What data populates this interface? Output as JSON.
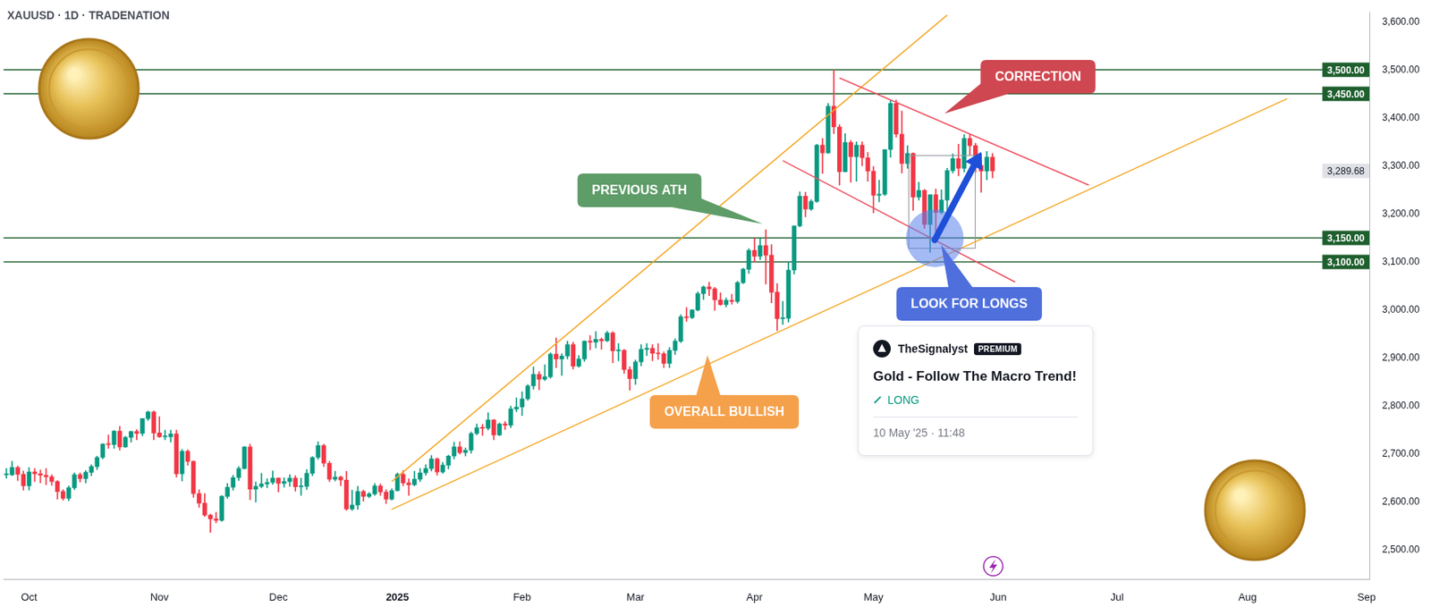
{
  "chart_data": {
    "type": "candlestick",
    "title": "XAUUSD · 1D · TRADENATION",
    "categories": [
      null,
      null,
      null,
      null,
      "Oct",
      null,
      null,
      null,
      null,
      null,
      null,
      null,
      null,
      null,
      null,
      null,
      null,
      null,
      null,
      null,
      null,
      null,
      null,
      null,
      null,
      null,
      null,
      "Nov",
      null,
      null,
      null,
      null,
      null,
      null,
      null,
      null,
      null,
      null,
      null,
      null,
      null,
      null,
      null,
      null,
      null,
      null,
      null,
      null,
      "Dec",
      null,
      null,
      null,
      null,
      null,
      null,
      null,
      null,
      null,
      null,
      null,
      null,
      null,
      null,
      null,
      null,
      null,
      null,
      null,
      null,
      "2025",
      null,
      null,
      null,
      null,
      null,
      null,
      null,
      null,
      null,
      null,
      null,
      null,
      null,
      null,
      null,
      null,
      null,
      null,
      null,
      null,
      null,
      "Feb",
      null,
      null,
      null,
      null,
      null,
      null,
      null,
      null,
      null,
      null,
      null,
      null,
      null,
      null,
      null,
      null,
      null,
      null,
      null,
      "Mar",
      null,
      null,
      null,
      null,
      null,
      null,
      null,
      null,
      null,
      null,
      null,
      null,
      null,
      null,
      null,
      null,
      null,
      null,
      null,
      null,
      "Apr",
      null,
      null,
      null,
      null,
      null,
      null,
      null,
      null,
      null,
      null,
      null,
      null,
      null,
      null,
      null,
      null,
      null,
      null,
      null,
      null,
      "May",
      null,
      null,
      null,
      null,
      null,
      null,
      null,
      null,
      null,
      null,
      null,
      null,
      null,
      null,
      null,
      null,
      null,
      null,
      null,
      null,
      null,
      "Jun",
      null,
      null,
      null,
      null,
      null,
      null,
      null,
      null,
      null,
      null,
      null,
      null,
      null,
      null,
      null,
      null,
      null,
      null,
      null,
      null,
      "Jul",
      null,
      null,
      null,
      null,
      null,
      null,
      null,
      null,
      null,
      null,
      null,
      null,
      null,
      null,
      null,
      null,
      null,
      null,
      null,
      null,
      null,
      null,
      "Aug",
      null,
      null,
      null,
      null,
      null,
      null,
      null,
      null,
      null,
      null,
      null,
      null,
      null,
      null,
      null,
      null,
      null,
      null,
      null,
      null,
      "Sep"
    ],
    "values": [
      [
        2657,
        2670,
        2650,
        2657
      ],
      [
        2657,
        2685,
        2655,
        2672
      ],
      [
        2672,
        2675,
        2645,
        2658
      ],
      [
        2658,
        2665,
        2625,
        2634
      ],
      [
        2634,
        2672,
        2625,
        2663
      ],
      [
        2663,
        2670,
        2643,
        2659
      ],
      [
        2659,
        2667,
        2640,
        2656
      ],
      [
        2656,
        2670,
        2636,
        2653
      ],
      [
        2653,
        2657,
        2635,
        2643
      ],
      [
        2643,
        2645,
        2606,
        2622
      ],
      [
        2622,
        2626,
        2604,
        2608
      ],
      [
        2608,
        2634,
        2603,
        2630
      ],
      [
        2630,
        2661,
        2626,
        2657
      ],
      [
        2657,
        2661,
        2642,
        2649
      ],
      [
        2649,
        2666,
        2640,
        2662
      ],
      [
        2662,
        2678,
        2655,
        2674
      ],
      [
        2674,
        2696,
        2668,
        2693
      ],
      [
        2693,
        2722,
        2690,
        2721
      ],
      [
        2721,
        2740,
        2712,
        2720
      ],
      [
        2720,
        2749,
        2712,
        2748
      ],
      [
        2748,
        2758,
        2708,
        2715
      ],
      [
        2715,
        2737,
        2714,
        2735
      ],
      [
        2735,
        2748,
        2725,
        2747
      ],
      [
        2747,
        2751,
        2730,
        2743
      ],
      [
        2743,
        2774,
        2738,
        2774
      ],
      [
        2774,
        2790,
        2770,
        2788
      ],
      [
        2788,
        2790,
        2730,
        2744
      ],
      [
        2744,
        2778,
        2735,
        2736
      ],
      [
        2736,
        2750,
        2730,
        2736
      ],
      [
        2736,
        2750,
        2725,
        2742
      ],
      [
        2742,
        2750,
        2652,
        2659
      ],
      [
        2659,
        2710,
        2644,
        2706
      ],
      [
        2706,
        2709,
        2677,
        2685
      ],
      [
        2685,
        2686,
        2610,
        2618
      ],
      [
        2618,
        2626,
        2589,
        2598
      ],
      [
        2598,
        2618,
        2570,
        2573
      ],
      [
        2573,
        2575,
        2537,
        2565
      ],
      [
        2565,
        2579,
        2557,
        2562
      ],
      [
        2562,
        2614,
        2560,
        2612
      ],
      [
        2612,
        2639,
        2608,
        2631
      ],
      [
        2631,
        2656,
        2625,
        2651
      ],
      [
        2651,
        2674,
        2645,
        2670
      ],
      [
        2670,
        2716,
        2669,
        2715
      ],
      [
        2715,
        2721,
        2605,
        2627
      ],
      [
        2627,
        2642,
        2600,
        2633
      ],
      [
        2633,
        2660,
        2630,
        2638
      ],
      [
        2638,
        2649,
        2630,
        2641
      ],
      [
        2641,
        2665,
        2637,
        2650
      ],
      [
        2650,
        2651,
        2621,
        2639
      ],
      [
        2639,
        2651,
        2631,
        2643
      ],
      [
        2643,
        2657,
        2633,
        2650
      ],
      [
        2650,
        2655,
        2623,
        2632
      ],
      [
        2632,
        2650,
        2614,
        2633
      ],
      [
        2633,
        2668,
        2626,
        2660
      ],
      [
        2660,
        2695,
        2655,
        2693
      ],
      [
        2693,
        2726,
        2689,
        2718
      ],
      [
        2718,
        2721,
        2674,
        2681
      ],
      [
        2681,
        2685,
        2643,
        2648
      ],
      [
        2648,
        2664,
        2644,
        2652
      ],
      [
        2652,
        2654,
        2634,
        2646
      ],
      [
        2646,
        2664,
        2583,
        2586
      ],
      [
        2586,
        2625,
        2583,
        2594
      ],
      [
        2594,
        2633,
        2585,
        2622
      ],
      [
        2622,
        2625,
        2602,
        2612
      ],
      [
        2612,
        2620,
        2609,
        2617
      ],
      [
        2617,
        2639,
        2614,
        2634
      ],
      [
        2634,
        2638,
        2614,
        2621
      ],
      [
        2621,
        2626,
        2597,
        2606
      ],
      [
        2606,
        2628,
        2604,
        2624
      ],
      [
        2624,
        2661,
        2623,
        2658
      ],
      [
        2658,
        2666,
        2634,
        2640
      ],
      [
        2640,
        2649,
        2614,
        2636
      ],
      [
        2636,
        2664,
        2634,
        2648
      ],
      [
        2648,
        2670,
        2643,
        2661
      ],
      [
        2661,
        2678,
        2656,
        2670
      ],
      [
        2670,
        2697,
        2665,
        2690
      ],
      [
        2690,
        2692,
        2656,
        2663
      ],
      [
        2663,
        2683,
        2660,
        2677
      ],
      [
        2677,
        2698,
        2669,
        2696
      ],
      [
        2696,
        2725,
        2690,
        2715
      ],
      [
        2715,
        2726,
        2700,
        2703
      ],
      [
        2703,
        2713,
        2696,
        2708
      ],
      [
        2708,
        2746,
        2702,
        2743
      ],
      [
        2743,
        2763,
        2740,
        2755
      ],
      [
        2755,
        2762,
        2739,
        2754
      ],
      [
        2754,
        2786,
        2750,
        2771
      ],
      [
        2771,
        2772,
        2730,
        2740
      ],
      [
        2740,
        2765,
        2738,
        2763
      ],
      [
        2763,
        2768,
        2751,
        2760
      ],
      [
        2760,
        2800,
        2755,
        2794
      ],
      [
        2794,
        2817,
        2788,
        2798
      ],
      [
        2798,
        2830,
        2780,
        2815
      ],
      [
        2815,
        2845,
        2812,
        2842
      ],
      [
        2842,
        2882,
        2835,
        2866
      ],
      [
        2866,
        2872,
        2834,
        2856
      ],
      [
        2856,
        2886,
        2853,
        2861
      ],
      [
        2861,
        2911,
        2858,
        2908
      ],
      [
        2908,
        2942,
        2880,
        2898
      ],
      [
        2898,
        2909,
        2864,
        2904
      ],
      [
        2904,
        2935,
        2898,
        2928
      ],
      [
        2928,
        2933,
        2877,
        2883
      ],
      [
        2883,
        2905,
        2881,
        2898
      ],
      [
        2898,
        2936,
        2893,
        2935
      ],
      [
        2935,
        2947,
        2917,
        2933
      ],
      [
        2933,
        2955,
        2921,
        2939
      ],
      [
        2939,
        2942,
        2918,
        2936
      ],
      [
        2936,
        2956,
        2934,
        2952
      ],
      [
        2952,
        2955,
        2890,
        2915
      ],
      [
        2915,
        2930,
        2894,
        2916
      ],
      [
        2916,
        2918,
        2868,
        2876
      ],
      [
        2876,
        2882,
        2833,
        2857
      ],
      [
        2857,
        2896,
        2845,
        2892
      ],
      [
        2892,
        2928,
        2884,
        2918
      ],
      [
        2918,
        2930,
        2905,
        2920
      ],
      [
        2920,
        2928,
        2894,
        2910
      ],
      [
        2910,
        2930,
        2897,
        2909
      ],
      [
        2909,
        2913,
        2880,
        2889
      ],
      [
        2889,
        2922,
        2880,
        2916
      ],
      [
        2916,
        2940,
        2907,
        2935
      ],
      [
        2935,
        2990,
        2932,
        2986
      ],
      [
        2986,
        3005,
        2976,
        2984
      ],
      [
        2984,
        3001,
        2982,
        3000
      ],
      [
        3000,
        3038,
        2998,
        3034
      ],
      [
        3034,
        3050,
        3022,
        3048
      ],
      [
        3048,
        3058,
        3030,
        3044
      ],
      [
        3044,
        3047,
        2999,
        3021
      ],
      [
        3021,
        3036,
        3010,
        3011
      ],
      [
        3011,
        3025,
        3006,
        3020
      ],
      [
        3020,
        3033,
        3012,
        3018
      ],
      [
        3018,
        3060,
        3014,
        3057
      ],
      [
        3057,
        3087,
        3055,
        3085
      ],
      [
        3085,
        3128,
        3076,
        3124
      ],
      [
        3124,
        3149,
        3100,
        3112
      ],
      [
        3112,
        3149,
        3105,
        3134
      ],
      [
        3134,
        3167,
        3054,
        3114
      ],
      [
        3114,
        3136,
        3015,
        3037
      ],
      [
        3037,
        3055,
        2957,
        2982
      ],
      [
        2982,
        3018,
        2970,
        2983
      ],
      [
        2983,
        3100,
        2975,
        3083
      ],
      [
        3083,
        3175,
        3075,
        3175
      ],
      [
        3175,
        3246,
        3173,
        3237
      ],
      [
        3237,
        3245,
        3194,
        3210
      ],
      [
        3210,
        3230,
        3207,
        3226
      ],
      [
        3226,
        3345,
        3224,
        3343
      ],
      [
        3343,
        3357,
        3284,
        3327
      ],
      [
        3327,
        3430,
        3326,
        3424
      ],
      [
        3424,
        3500,
        3367,
        3381
      ],
      [
        3381,
        3386,
        3260,
        3288
      ],
      [
        3288,
        3367,
        3287,
        3349
      ],
      [
        3349,
        3353,
        3266,
        3319
      ],
      [
        3319,
        3350,
        3268,
        3343
      ],
      [
        3343,
        3350,
        3300,
        3317
      ],
      [
        3317,
        3328,
        3268,
        3289
      ],
      [
        3289,
        3299,
        3202,
        3239
      ],
      [
        3239,
        3270,
        3225,
        3241
      ],
      [
        3241,
        3334,
        3238,
        3334
      ],
      [
        3334,
        3436,
        3318,
        3430
      ],
      [
        3430,
        3437,
        3360,
        3366
      ],
      [
        3366,
        3414,
        3285,
        3305
      ],
      [
        3305,
        3342,
        3295,
        3326
      ],
      [
        3326,
        3327,
        3207,
        3235
      ],
      [
        3235,
        3266,
        3229,
        3249
      ],
      [
        3249,
        3251,
        3170,
        3178
      ],
      [
        3178,
        3240,
        3120,
        3240
      ],
      [
        3240,
        3252,
        3154,
        3203
      ],
      [
        3203,
        3250,
        3200,
        3229
      ],
      [
        3229,
        3295,
        3206,
        3290
      ],
      [
        3290,
        3325,
        3285,
        3315
      ],
      [
        3315,
        3345,
        3279,
        3295
      ],
      [
        3295,
        3365,
        3287,
        3357
      ],
      [
        3357,
        3365,
        3323,
        3342
      ],
      [
        3342,
        3347,
        3286,
        3301
      ],
      [
        3301,
        3325,
        3245,
        3289
      ],
      [
        3289,
        3330,
        3271,
        3318
      ],
      [
        3318,
        3326,
        3275,
        3289.68
      ],
      null,
      null,
      null,
      null,
      null,
      null,
      null,
      null,
      null,
      null,
      null,
      null,
      null,
      null,
      null,
      null,
      null,
      null,
      null,
      null,
      null,
      null,
      null,
      null,
      null,
      null,
      null,
      null,
      null,
      null,
      null,
      null,
      null,
      null,
      null,
      null,
      null,
      null,
      null,
      null,
      null,
      null,
      null,
      null,
      null,
      null,
      null,
      null,
      null,
      null,
      null,
      null,
      null,
      null,
      null,
      null,
      null,
      null,
      null,
      null,
      null,
      null,
      null,
      null,
      null,
      null
    ],
    "ylim": [
      2440,
      3620
    ],
    "yticks": [
      {
        "value": 2500,
        "label": "2,500.00"
      },
      {
        "value": 2600,
        "label": "2,600.00"
      },
      {
        "value": 2700,
        "label": "2,700.00"
      },
      {
        "value": 2800,
        "label": "2,800.00"
      },
      {
        "value": 2900,
        "label": "2,900.00"
      },
      {
        "value": 3000,
        "label": "3,000.00"
      },
      {
        "value": 3100,
        "label": "3,100.00"
      },
      {
        "value": 3200,
        "label": "3,200.00"
      },
      {
        "value": 3300,
        "label": "3,300.00"
      },
      {
        "value": 3400,
        "label": "3,400.00"
      },
      {
        "value": 3500,
        "label": "3,500.00"
      },
      {
        "value": 3600,
        "label": "3,600.00"
      }
    ],
    "grid": false,
    "levels": [
      {
        "value": 3500,
        "label": "3,500.00"
      },
      {
        "value": 3450,
        "label": "3,450.00"
      },
      {
        "value": 3150,
        "label": "3,150.00"
      },
      {
        "value": 3100,
        "label": "3,100.00"
      }
    ],
    "last_price": {
      "value": 3289.68,
      "label": "3,289.68"
    },
    "trendlines": [
      {
        "color": "#f5a623",
        "start": [
          68,
          2643
        ],
        "end": [
          166,
          3614
        ]
      },
      {
        "color": "#f5a623",
        "start": [
          68,
          2585
        ],
        "end": [
          226,
          3440
        ]
      },
      {
        "color": "#ef4f5f",
        "start": [
          147,
          3483
        ],
        "end": [
          191,
          3260
        ]
      },
      {
        "color": "#ef4f5f",
        "start": [
          137,
          3311
        ],
        "end": [
          178,
          3058
        ]
      }
    ],
    "annotations": [
      {
        "text": "PREVIOUS ATH",
        "color": "#5e9c68"
      },
      {
        "text": "CORRECTION",
        "color": "#cf4750"
      },
      {
        "text": "OVERALL BULLISH",
        "color": "#f5a04a"
      },
      {
        "text": "LOOK FOR LONGS",
        "color": "#4e6fdc"
      }
    ],
    "card": {
      "author": "TheSignalyst",
      "badge": "PREMIUM",
      "title": "Gold - Follow The Macro Trend!",
      "direction": "LONG",
      "date": "10 May '25 · 11:48"
    }
  }
}
